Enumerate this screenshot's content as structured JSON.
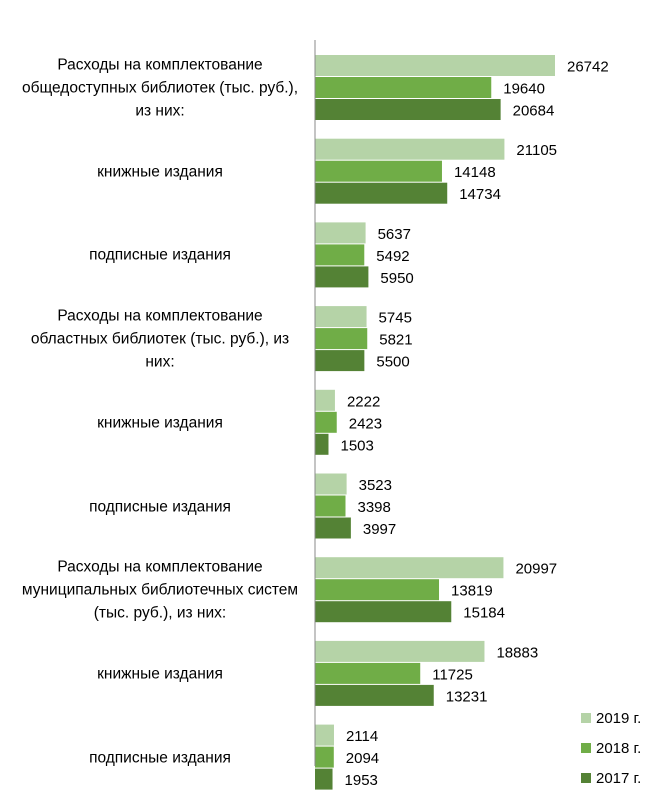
{
  "chart_data": {
    "type": "bar",
    "orientation": "horizontal",
    "categories": [
      "Расходы на комплектование общедоступных библиотек (тыс. руб.), из них:",
      "книжные издания",
      "подписные издания",
      "Расходы на комплектование областных библиотек (тыс. руб.), из них:",
      "книжные издания",
      "подписные издания",
      "Расходы на комплектование муниципальных библиотечных систем (тыс. руб.), из них:",
      "книжные издания",
      "подписные издания"
    ],
    "series": [
      {
        "name": "2019 г.",
        "color": "#b5d3a7",
        "values": [
          26742,
          21105,
          5637,
          5745,
          2222,
          3523,
          20997,
          18883,
          2114
        ]
      },
      {
        "name": "2018 г.",
        "color": "#70ad47",
        "values": [
          19640,
          14148,
          5492,
          5821,
          2423,
          3398,
          13819,
          11725,
          2094
        ]
      },
      {
        "name": "2017 г.",
        "color": "#548235",
        "values": [
          20684,
          14734,
          5950,
          5500,
          1503,
          3997,
          15184,
          13231,
          1953
        ]
      }
    ],
    "legend": "bottom-right"
  }
}
